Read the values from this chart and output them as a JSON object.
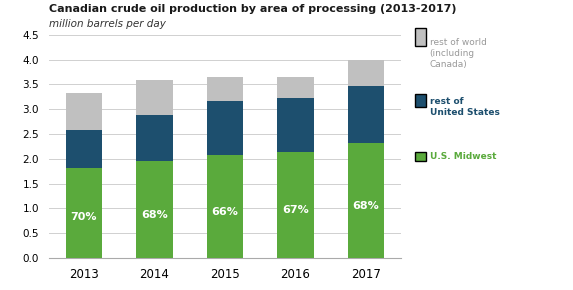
{
  "title": "Canadian crude oil production by area of processing (2013-2017)",
  "subtitle": "million barrels per day",
  "years": [
    2013,
    2014,
    2015,
    2016,
    2017
  ],
  "midwest": [
    1.82,
    1.95,
    2.07,
    2.14,
    2.32
  ],
  "rest_us": [
    0.77,
    0.93,
    1.1,
    1.08,
    1.14
  ],
  "rest_world": [
    0.74,
    0.71,
    0.48,
    0.43,
    0.54
  ],
  "pct_labels": [
    "70%",
    "68%",
    "66%",
    "67%",
    "68%"
  ],
  "color_midwest": "#5aaa3c",
  "color_rest_us": "#1d4f6e",
  "color_rest_world": "#c0c0c0",
  "color_bg": "#ffffff",
  "ylim": [
    0,
    4.5
  ],
  "yticks": [
    0.0,
    0.5,
    1.0,
    1.5,
    2.0,
    2.5,
    3.0,
    3.5,
    4.0,
    4.5
  ],
  "grid_color": "#d0d0d0",
  "legend_world_text": "rest of world\n(including\nCanada)",
  "legend_us_text": "rest of\nUnited States",
  "legend_midwest_text": "U.S. Midwest"
}
